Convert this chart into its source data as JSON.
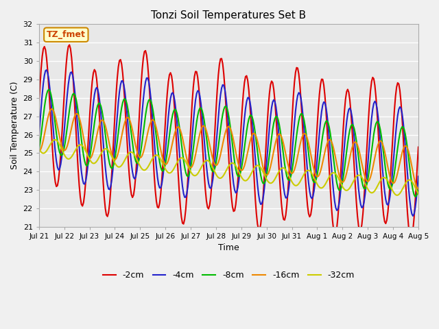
{
  "title": "Tonzi Soil Temperatures Set B",
  "xlabel": "Time",
  "ylabel": "Soil Temperature (C)",
  "ylim": [
    21.0,
    32.0
  ],
  "yticks": [
    21.0,
    22.0,
    23.0,
    24.0,
    25.0,
    26.0,
    27.0,
    28.0,
    29.0,
    30.0,
    31.0,
    32.0
  ],
  "legend_label": "TZ_fmet",
  "series": {
    "-2cm": {
      "color": "#dd0000",
      "lw": 1.5
    },
    "-4cm": {
      "color": "#2222cc",
      "lw": 1.5
    },
    "-8cm": {
      "color": "#00bb00",
      "lw": 1.5
    },
    "-16cm": {
      "color": "#ee8800",
      "lw": 1.5
    },
    "-32cm": {
      "color": "#cccc00",
      "lw": 1.5
    }
  },
  "n_points": 350,
  "background_color": "#e8e8e8",
  "grid_color": "#ffffff",
  "xtick_positions": [
    0,
    1,
    2,
    3,
    4,
    5,
    6,
    7,
    8,
    9,
    10,
    11,
    12,
    13,
    14,
    15
  ],
  "xtick_labels": [
    "Jul 21",
    "Jul 22",
    "Jul 23",
    "Jul 24",
    "Jul 25",
    "Jul 26",
    "Jul 27",
    "Jul 28",
    "Jul 29",
    "Jul 30",
    "Jul 31",
    "Aug 1",
    "Aug 2",
    "Aug 3",
    "Aug 4",
    "Aug 5"
  ]
}
